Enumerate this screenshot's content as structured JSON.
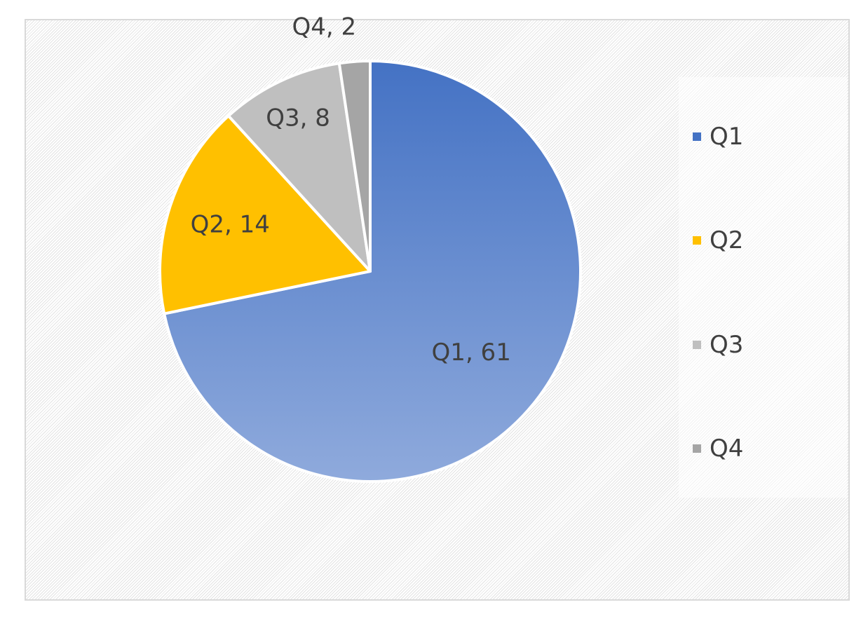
{
  "chart_data": {
    "type": "pie",
    "categories": [
      "Q1",
      "Q2",
      "Q3",
      "Q4"
    ],
    "values": [
      61,
      14,
      8,
      2
    ],
    "data_labels": [
      "Q1, 61",
      "Q2, 14",
      "Q3, 8",
      "Q4, 2"
    ],
    "colors": [
      "#4472C4",
      "#FFC000",
      "#BFBFBF",
      "#A5A5A5"
    ],
    "legend_position": "right",
    "grid": false
  },
  "legend": {
    "items": [
      {
        "label": "Q1",
        "color": "#4472C4"
      },
      {
        "label": "Q2",
        "color": "#FFC000"
      },
      {
        "label": "Q3",
        "color": "#BFBFBF"
      },
      {
        "label": "Q4",
        "color": "#A5A5A5"
      }
    ]
  }
}
